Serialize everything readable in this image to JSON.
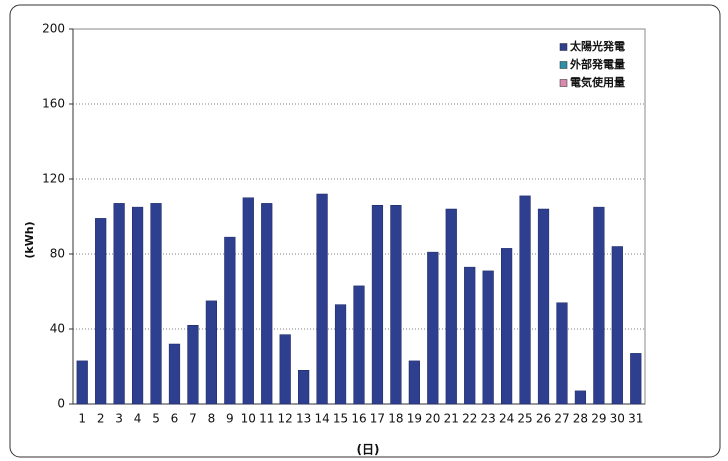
{
  "chart_data": {
    "type": "bar",
    "x_label": "(日)",
    "y_label": "(kWh)",
    "categories": [
      "1",
      "2",
      "3",
      "4",
      "5",
      "6",
      "7",
      "8",
      "9",
      "10",
      "11",
      "12",
      "13",
      "14",
      "15",
      "16",
      "17",
      "18",
      "19",
      "20",
      "21",
      "22",
      "23",
      "24",
      "25",
      "26",
      "27",
      "28",
      "29",
      "30",
      "31"
    ],
    "series": [
      {
        "name": "太陽光発電",
        "color": "#2e3f8f",
        "values": [
          23,
          99,
          107,
          105,
          107,
          32,
          42,
          55,
          89,
          110,
          107,
          37,
          18,
          112,
          53,
          63,
          106,
          106,
          23,
          81,
          104,
          73,
          71,
          83,
          111,
          104,
          54,
          7,
          105,
          84,
          27
        ]
      },
      {
        "name": "外部発電量",
        "color": "#2f8fa8",
        "values": [
          null,
          null,
          null,
          null,
          null,
          null,
          null,
          null,
          null,
          null,
          null,
          null,
          null,
          null,
          null,
          null,
          null,
          null,
          null,
          null,
          null,
          null,
          null,
          null,
          null,
          null,
          null,
          null,
          null,
          null,
          null
        ]
      },
      {
        "name": "電気使用量",
        "color": "#d98ab0",
        "values": [
          null,
          null,
          null,
          null,
          null,
          null,
          null,
          null,
          null,
          null,
          null,
          null,
          null,
          null,
          null,
          null,
          null,
          null,
          null,
          null,
          null,
          null,
          null,
          null,
          null,
          null,
          null,
          null,
          null,
          null,
          null
        ]
      }
    ],
    "ylim": [
      0,
      200
    ],
    "yticks": [
      0,
      40,
      80,
      120,
      160,
      200
    ],
    "grid": true,
    "legend": "top-right"
  }
}
